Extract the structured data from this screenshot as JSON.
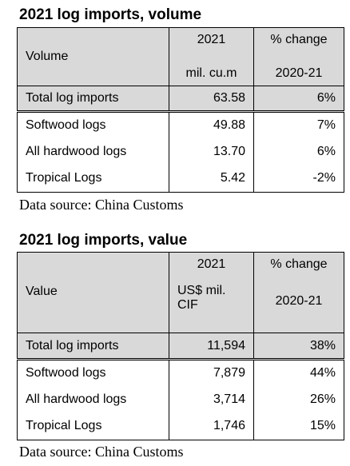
{
  "volume": {
    "title": "2021 log imports, volume",
    "header": {
      "col1": "Volume",
      "col2_top": "2021",
      "col2_bottom": "mil. cu.m",
      "col3_top": "% change",
      "col3_bottom": "2020-21"
    },
    "rows": [
      {
        "label": "Total log imports",
        "value": "63.58",
        "change": "6%"
      },
      {
        "label": "Softwood logs",
        "value": "49.88",
        "change": "7%"
      },
      {
        "label": "All hardwood logs",
        "value": "13.70",
        "change": "6%"
      },
      {
        "label": "Tropical Logs",
        "value": "5.42",
        "change": "-2%"
      }
    ],
    "source": "Data source: China Customs"
  },
  "value": {
    "title": "2021 log imports, value",
    "header": {
      "col1": "Value",
      "col2_top": "2021",
      "col2_bottom_line1": "US$ mil.",
      "col2_bottom_line2": "CIF",
      "col3_top": "% change",
      "col3_bottom": "2020-21"
    },
    "rows": [
      {
        "label": "Total log imports",
        "value": "11,594",
        "change": "38%"
      },
      {
        "label": "Softwood logs",
        "value": "7,879",
        "change": "44%"
      },
      {
        "label": "All hardwood logs",
        "value": "3,714",
        "change": "26%"
      },
      {
        "label": "Tropical Logs",
        "value": "1,746",
        "change": "15%"
      }
    ],
    "source": "Data source: China Customs"
  }
}
